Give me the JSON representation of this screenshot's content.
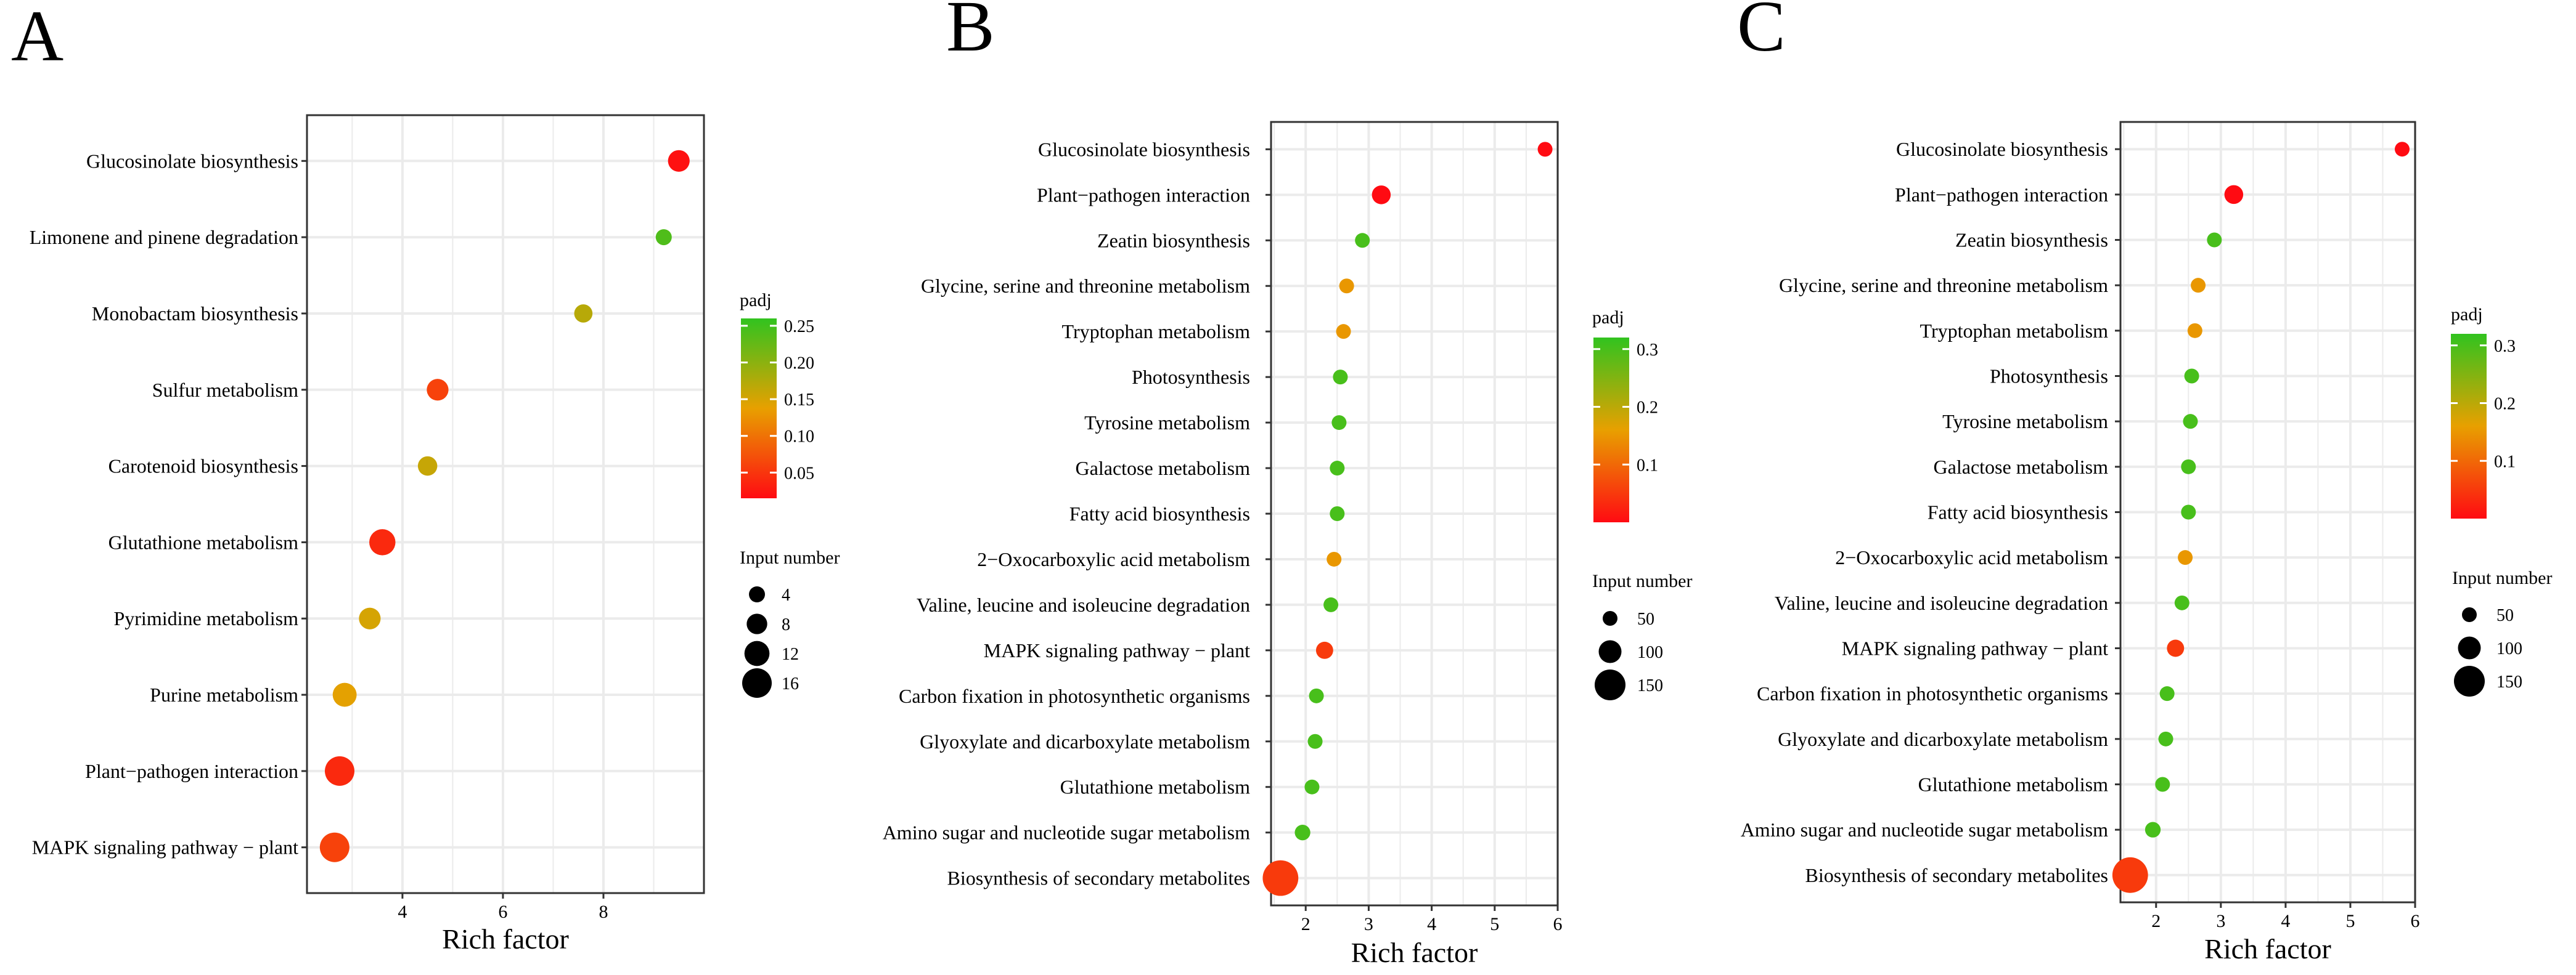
{
  "figure": {
    "colors": {
      "high": "#31c31f",
      "mid": "#e8a000",
      "low": "#ff0b12",
      "grid": "#ebebeb",
      "frame": "#333333"
    },
    "legend_titles": {
      "color": "padj",
      "size": "Input number"
    }
  },
  "chart_data": [
    {
      "type": "scatter",
      "panel_label": "A",
      "xlabel": "Rich factor",
      "xlim": [
        2.1,
        10.0
      ],
      "xticks": [
        4,
        6,
        8
      ],
      "categories": [
        "Glucosinolate biosynthesis",
        "Limonene and pinene degradation",
        "Monobactam biosynthesis",
        "Sulfur metabolism",
        "Carotenoid biosynthesis",
        "Glutathione metabolism",
        "Pyrimidine metabolism",
        "Purine metabolism",
        "Plant−pathogen interaction",
        "MAPK signaling pathway − plant"
      ],
      "rich_factor": [
        9.5,
        9.2,
        7.6,
        4.7,
        4.5,
        3.6,
        3.35,
        2.85,
        2.75,
        2.65
      ],
      "input_number": [
        9,
        3,
        6,
        9,
        7,
        13,
        9,
        11,
        16,
        16
      ],
      "padj": [
        0.02,
        0.24,
        0.17,
        0.06,
        0.16,
        0.04,
        0.15,
        0.14,
        0.04,
        0.06
      ],
      "color_legend": {
        "title": "padj",
        "ticks": [
          "0.25",
          "0.20",
          "0.15",
          "0.10",
          "0.05"
        ],
        "tick_values": [
          0.25,
          0.2,
          0.15,
          0.1,
          0.05
        ],
        "range": [
          0.015,
          0.26
        ]
      },
      "size_legend": {
        "title": "Input number",
        "labels": [
          "4",
          "8",
          "12",
          "16"
        ],
        "values": [
          4,
          8,
          12,
          16
        ]
      }
    },
    {
      "type": "scatter",
      "panel_label": "B",
      "xlabel": "Rich factor",
      "xlim": [
        1.45,
        6.0
      ],
      "xticks": [
        2,
        3,
        4,
        5,
        6
      ],
      "categories": [
        "Glucosinolate biosynthesis",
        "Plant−pathogen interaction",
        "Zeatin biosynthesis",
        "Glycine, serine and threonine metabolism",
        "Tryptophan metabolism",
        "Photosynthesis",
        "Tyrosine metabolism",
        "Galactose metabolism",
        "Fatty acid biosynthesis",
        "2−Oxocarboxylic acid metabolism",
        "Valine, leucine and isoleucine degradation",
        "MAPK signaling pathway − plant",
        "Carbon fixation in photosynthetic organisms",
        "Glyoxylate and dicarboxylate metabolism",
        "Glutathione metabolism",
        "Amino sugar and nucleotide sugar metabolism",
        "Biosynthesis of secondary metabolites"
      ],
      "rich_factor": [
        5.8,
        3.2,
        2.9,
        2.65,
        2.6,
        2.55,
        2.53,
        2.5,
        2.5,
        2.45,
        2.4,
        2.3,
        2.17,
        2.15,
        2.1,
        1.95,
        1.6
      ],
      "input_number": [
        15,
        75,
        15,
        45,
        45,
        40,
        30,
        35,
        30,
        45,
        35,
        65,
        40,
        45,
        50,
        55,
        180
      ],
      "padj": [
        0.0,
        0.0,
        0.3,
        0.15,
        0.15,
        0.3,
        0.3,
        0.3,
        0.3,
        0.15,
        0.3,
        0.05,
        0.3,
        0.3,
        0.3,
        0.3,
        0.05
      ],
      "color_legend": {
        "title": "padj",
        "ticks": [
          "0.3",
          "0.2",
          "0.1"
        ],
        "tick_values": [
          0.3,
          0.2,
          0.1
        ],
        "range": [
          0.0,
          0.32
        ]
      },
      "size_legend": {
        "title": "Input number",
        "labels": [
          "50",
          "100",
          "150"
        ],
        "values": [
          50,
          100,
          150
        ]
      }
    },
    {
      "type": "scatter",
      "panel_label": "C",
      "xlabel": "Rich factor",
      "xlim": [
        1.45,
        6.0
      ],
      "xticks": [
        2,
        3,
        4,
        5,
        6
      ],
      "categories": [
        "Glucosinolate biosynthesis",
        "Plant−pathogen interaction",
        "Zeatin biosynthesis",
        "Glycine, serine and threonine metabolism",
        "Tryptophan metabolism",
        "Photosynthesis",
        "Tyrosine metabolism",
        "Galactose metabolism",
        "Fatty acid biosynthesis",
        "2−Oxocarboxylic acid metabolism",
        "Valine, leucine and isoleucine degradation",
        "MAPK signaling pathway − plant",
        "Carbon fixation in photosynthetic organisms",
        "Glyoxylate and dicarboxylate metabolism",
        "Glutathione metabolism",
        "Amino sugar and nucleotide sugar metabolism",
        "Biosynthesis of secondary metabolites"
      ],
      "rich_factor": [
        5.8,
        3.2,
        2.9,
        2.65,
        2.6,
        2.55,
        2.53,
        2.5,
        2.5,
        2.45,
        2.4,
        2.3,
        2.17,
        2.15,
        2.1,
        1.95,
        1.6
      ],
      "input_number": [
        15,
        75,
        15,
        45,
        45,
        40,
        30,
        35,
        30,
        45,
        35,
        65,
        40,
        45,
        50,
        55,
        180
      ],
      "padj": [
        0.0,
        0.0,
        0.3,
        0.15,
        0.15,
        0.3,
        0.3,
        0.3,
        0.3,
        0.15,
        0.3,
        0.05,
        0.3,
        0.3,
        0.3,
        0.3,
        0.05
      ],
      "color_legend": {
        "title": "padj",
        "ticks": [
          "0.3",
          "0.2",
          "0.1"
        ],
        "tick_values": [
          0.3,
          0.2,
          0.1
        ],
        "range": [
          0.0,
          0.32
        ]
      },
      "size_legend": {
        "title": "Input number",
        "labels": [
          "50",
          "100",
          "150"
        ],
        "values": [
          50,
          100,
          150
        ]
      }
    }
  ]
}
